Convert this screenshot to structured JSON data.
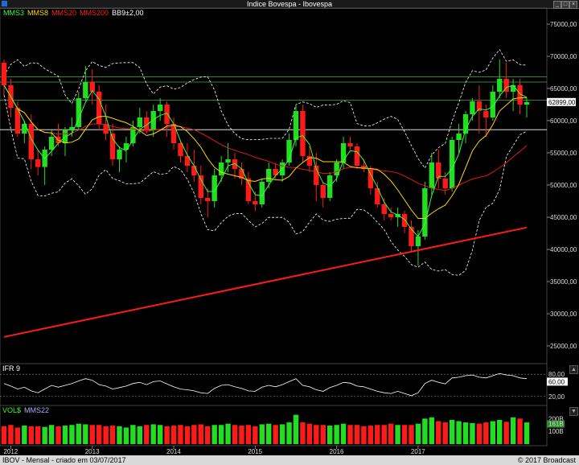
{
  "window": {
    "title": "Indice Bovespa - Ibovespa",
    "controls": [
      "minimize-icon",
      "maximize-icon",
      "close-icon"
    ]
  },
  "legend": {
    "items": [
      {
        "label": "MMS3",
        "color": "#33ff33"
      },
      {
        "label": "MMS8",
        "color": "#ffd700"
      },
      {
        "label": "MMS20",
        "color": "#ff2020"
      },
      {
        "label": "MMS200",
        "color": "#ff2020"
      },
      {
        "label": "BB9±2,00",
        "color": "#ffffff"
      }
    ]
  },
  "price_panel": {
    "y_ticks": [
      "75000,00",
      "70000,00",
      "65000,00",
      "60000,00",
      "55000,00",
      "50000,00",
      "45000,00",
      "40000,00",
      "35000,00",
      "30000,00",
      "25000,00"
    ],
    "last_price_label": "62899,00"
  },
  "ifr_panel": {
    "title": "IFR 9",
    "ticks": [
      "80,00",
      "60,00",
      "20,00"
    ]
  },
  "volume_panel": {
    "title": "VOL$",
    "ma_title": "MMS22",
    "ticks": [
      "200B",
      "161B",
      "100B"
    ]
  },
  "x_axis": {
    "labels": [
      "2012",
      "2013",
      "2014",
      "2015",
      "2016",
      "2017"
    ]
  },
  "footer": {
    "left": "IBOV - Mensal - criado em 03/07/2017",
    "right": "© 2017 Broadcast"
  },
  "colors": {
    "up": "#22dd22",
    "down": "#ff1a1a",
    "mms3": "#33ff33",
    "mms8": "#ffd700",
    "mms20": "#e01818",
    "mms200": "#ff1a1a",
    "bands": "#ffffff",
    "hlines": "#3cb43c"
  },
  "chart_data": [
    {
      "type": "candlestick",
      "title": "Indice Bovespa - Ibovespa",
      "interval": "monthly",
      "ylim": [
        22500,
        77500
      ],
      "x_labels": [
        "2012",
        "2013",
        "2014",
        "2015",
        "2016",
        "2017"
      ],
      "horizontal_lines": [
        66800,
        66000,
        63200,
        58600
      ],
      "last_value": 62899,
      "ohlc": [
        [
          69000,
          69500,
          64000,
          65500
        ],
        [
          65500,
          66500,
          60500,
          62000
        ],
        [
          62000,
          63000,
          57500,
          58000
        ],
        [
          58000,
          60000,
          56500,
          59500
        ],
        [
          59500,
          61000,
          52500,
          54000
        ],
        [
          54000,
          55500,
          51500,
          52800
        ],
        [
          52800,
          56000,
          50000,
          55500
        ],
        [
          55500,
          58500,
          54500,
          57500
        ],
        [
          57500,
          59500,
          56000,
          56500
        ],
        [
          56500,
          59000,
          54500,
          58500
        ],
        [
          58500,
          60500,
          57500,
          59000
        ],
        [
          59000,
          64500,
          58500,
          63500
        ],
        [
          63500,
          68500,
          63000,
          66000
        ],
        [
          66000,
          68000,
          62500,
          64500
        ],
        [
          64500,
          65500,
          58500,
          59500
        ],
        [
          59500,
          62500,
          57000,
          58000
        ],
        [
          58000,
          59500,
          53000,
          54000
        ],
        [
          54000,
          56000,
          52000,
          55500
        ],
        [
          55500,
          57500,
          53500,
          56500
        ],
        [
          56500,
          60000,
          56000,
          59000
        ],
        [
          59000,
          62000,
          58000,
          60500
        ],
        [
          60500,
          61500,
          58000,
          58500
        ],
        [
          58500,
          62500,
          57500,
          61500
        ],
        [
          61500,
          63500,
          60000,
          62500
        ],
        [
          62500,
          63000,
          57500,
          59500
        ],
        [
          59500,
          60500,
          55500,
          56500
        ],
        [
          56500,
          57000,
          53500,
          54500
        ],
        [
          54500,
          56500,
          52000,
          53000
        ],
        [
          53000,
          55500,
          50500,
          51500
        ],
        [
          51500,
          53000,
          47000,
          48000
        ],
        [
          48000,
          49500,
          45000,
          47500
        ],
        [
          47500,
          52500,
          46500,
          51500
        ],
        [
          51500,
          54500,
          50500,
          53500
        ],
        [
          53500,
          56500,
          52000,
          54000
        ],
        [
          54000,
          55000,
          51000,
          52500
        ],
        [
          52500,
          53500,
          50000,
          51000
        ],
        [
          51000,
          52000,
          47000,
          47500
        ],
        [
          47500,
          49000,
          46000,
          47000
        ],
        [
          47000,
          51000,
          46500,
          50500
        ],
        [
          50500,
          53500,
          49500,
          52500
        ],
        [
          52500,
          53500,
          51000,
          51500
        ],
        [
          51500,
          54000,
          50500,
          53500
        ],
        [
          53500,
          58000,
          53000,
          57000
        ],
        [
          57000,
          62500,
          56000,
          61500
        ],
        [
          61500,
          62500,
          53500,
          54500
        ],
        [
          54500,
          56000,
          52000,
          53000
        ],
        [
          53000,
          55000,
          47500,
          50000
        ],
        [
          50000,
          50500,
          46500,
          48000
        ],
        [
          48000,
          52000,
          47500,
          51500
        ],
        [
          51500,
          54000,
          50500,
          53500
        ],
        [
          53500,
          57500,
          52500,
          56500
        ],
        [
          56500,
          57500,
          55500,
          56000
        ],
        [
          56000,
          56500,
          52500,
          53000
        ],
        [
          53000,
          54000,
          52000,
          52500
        ],
        [
          52500,
          53000,
          48500,
          49500
        ],
        [
          49500,
          50500,
          46500,
          47000
        ],
        [
          47000,
          48000,
          44500,
          45500
        ],
        [
          45500,
          46500,
          44500,
          45000
        ],
        [
          45000,
          46500,
          43500,
          45500
        ],
        [
          45500,
          46000,
          42500,
          43500
        ],
        [
          43500,
          44500,
          39500,
          40500
        ],
        [
          40500,
          43000,
          37500,
          42000
        ],
        [
          42000,
          50500,
          41500,
          49500
        ],
        [
          49500,
          55000,
          48500,
          53500
        ],
        [
          53500,
          55500,
          49500,
          51000
        ],
        [
          51000,
          52000,
          48500,
          49500
        ],
        [
          49500,
          57500,
          49000,
          57000
        ],
        [
          57000,
          59500,
          55000,
          58000
        ],
        [
          58000,
          61500,
          56500,
          61000
        ],
        [
          61000,
          63500,
          60000,
          63000
        ],
        [
          63000,
          65500,
          58000,
          61500
        ],
        [
          61500,
          62500,
          57500,
          60500
        ],
        [
          60500,
          65500,
          60000,
          64500
        ],
        [
          64500,
          69500,
          63500,
          66500
        ],
        [
          66500,
          69000,
          63500,
          64500
        ],
        [
          64500,
          66500,
          61500,
          65500
        ],
        [
          65500,
          66500,
          61000,
          62500
        ],
        [
          62500,
          63500,
          60500,
          62899
        ]
      ],
      "mms200_endpoints": [
        [
          0,
          26400
        ],
        [
          78,
          43400
        ]
      ]
    },
    {
      "type": "line",
      "title": "IFR 9",
      "ylim": [
        0,
        100
      ],
      "values": [
        55,
        48,
        40,
        45,
        35,
        30,
        40,
        50,
        45,
        50,
        55,
        62,
        68,
        64,
        52,
        48,
        40,
        44,
        48,
        55,
        58,
        52,
        60,
        62,
        54,
        46,
        40,
        38,
        35,
        30,
        28,
        42,
        50,
        52,
        46,
        42,
        35,
        34,
        45,
        50,
        46,
        52,
        60,
        68,
        50,
        46,
        38,
        34,
        44,
        50,
        58,
        56,
        48,
        46,
        40,
        34,
        30,
        28,
        34,
        28,
        22,
        30,
        55,
        64,
        58,
        54,
        70,
        72,
        76,
        78,
        72,
        70,
        76,
        82,
        78,
        76,
        70,
        68
      ]
    },
    {
      "type": "bar",
      "title": "VOL$",
      "unit": "B",
      "values": [
        140,
        150,
        130,
        145,
        140,
        140,
        135,
        150,
        140,
        145,
        150,
        160,
        155,
        150,
        150,
        140,
        145,
        140,
        130,
        150,
        140,
        150,
        155,
        150,
        140,
        145,
        150,
        140,
        150,
        155,
        140,
        150,
        150,
        160,
        150,
        145,
        150,
        140,
        155,
        160,
        150,
        155,
        170,
        230,
        170,
        160,
        150,
        150,
        145,
        150,
        160,
        150,
        150,
        140,
        145,
        150,
        150,
        160,
        150,
        150,
        150,
        160,
        200,
        210,
        180,
        170,
        190,
        180,
        170,
        165,
        160,
        170,
        180,
        190,
        175,
        210,
        200,
        170
      ]
    }
  ]
}
